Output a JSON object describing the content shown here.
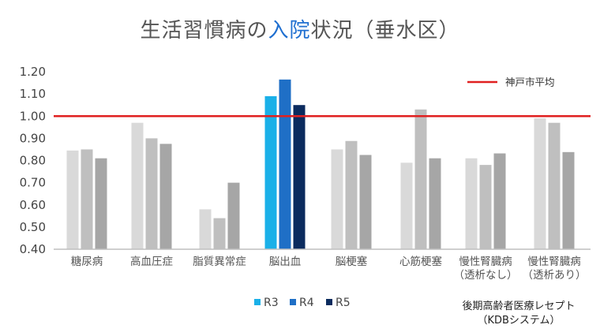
{
  "title": {
    "prefix": "生活習慣病の",
    "highlight": "入院",
    "suffix": "状況（垂水区）"
  },
  "chart_data": {
    "type": "bar",
    "title": "生活習慣病の入院状況（垂水区）",
    "ylim": [
      0.4,
      1.2
    ],
    "yticks": [
      "1.20",
      "1.10",
      "1.00",
      "0.90",
      "0.80",
      "0.70",
      "0.60",
      "0.50",
      "0.40"
    ],
    "ytick_values": [
      1.2,
      1.1,
      1.0,
      0.9,
      0.8,
      0.7,
      0.6,
      0.5,
      0.4
    ],
    "categories": [
      [
        "糖尿病"
      ],
      [
        "高血圧症"
      ],
      [
        "脂質異常症"
      ],
      [
        "脳出血"
      ],
      [
        "脳梗塞"
      ],
      [
        "心筋梗塞"
      ],
      [
        "慢性腎臓病",
        "（透析なし）"
      ],
      [
        "慢性腎臓病",
        "（透析あり）"
      ]
    ],
    "series": [
      {
        "name": "R3",
        "values": [
          0.845,
          0.97,
          0.58,
          1.09,
          0.85,
          0.79,
          0.81,
          0.99
        ]
      },
      {
        "name": "R4",
        "values": [
          0.85,
          0.9,
          0.54,
          1.165,
          0.888,
          1.03,
          0.78,
          0.97
        ]
      },
      {
        "name": "R5",
        "values": [
          0.81,
          0.875,
          0.7,
          1.05,
          0.825,
          0.81,
          0.832,
          0.838
        ]
      }
    ],
    "highlight_category": 3,
    "colors": {
      "normal": [
        "#d9d9d9",
        "#bfbfbf",
        "#a6a6a6"
      ],
      "highlight": [
        "#1ab0e8",
        "#1f6fc6",
        "#0b2b5e"
      ],
      "reference": "#e02020",
      "axis": "#bfbfbf"
    },
    "reference_line": {
      "label": "神戸市平均",
      "value": 1.0
    },
    "legend": [
      "R3",
      "R4",
      "R5"
    ]
  },
  "source": {
    "line1": "後期高齢者医療レセプト",
    "line2": "（KDBシステム）"
  }
}
